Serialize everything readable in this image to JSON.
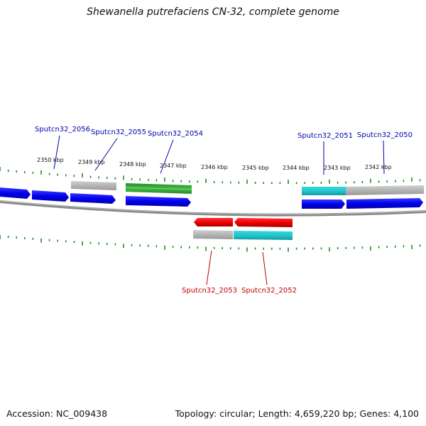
{
  "title": "Shewanella putrefaciens CN-32, complete genome",
  "footer": {
    "accession": "Accession: NC_009438",
    "summary": "Topology: circular; Length: 4,659,220 bp; Genes: 4,100"
  },
  "colors": {
    "cds": "#0000ee",
    "gene_other": "#b4b4b4",
    "rna_green": "#33a833",
    "cyan": "#22c6cc",
    "reverse_cds": "#ee0000",
    "backbone": "#888888",
    "ticks": "#118811",
    "label_forward": "#0000aa",
    "label_reverse": "#bb0000"
  },
  "scale": {
    "labels": [
      "2350 kbp",
      "2349 kbp",
      "2348 kbp",
      "2347 kbp",
      "2346 kbp",
      "2345 kbp",
      "2344 kbp",
      "2343 kbp",
      "2342 kbp"
    ]
  },
  "gene_labels": [
    {
      "name": "Sputcn32_2056",
      "strand": "forward"
    },
    {
      "name": "Sputcn32_2055",
      "strand": "forward"
    },
    {
      "name": "Sputcn32_2054",
      "strand": "forward"
    },
    {
      "name": "Sputcn32_2051",
      "strand": "forward"
    },
    {
      "name": "Sputcn32_2050",
      "strand": "forward"
    },
    {
      "name": "Sputcn32_2053",
      "strand": "reverse"
    },
    {
      "name": "Sputcn32_2052",
      "strand": "reverse"
    }
  ]
}
